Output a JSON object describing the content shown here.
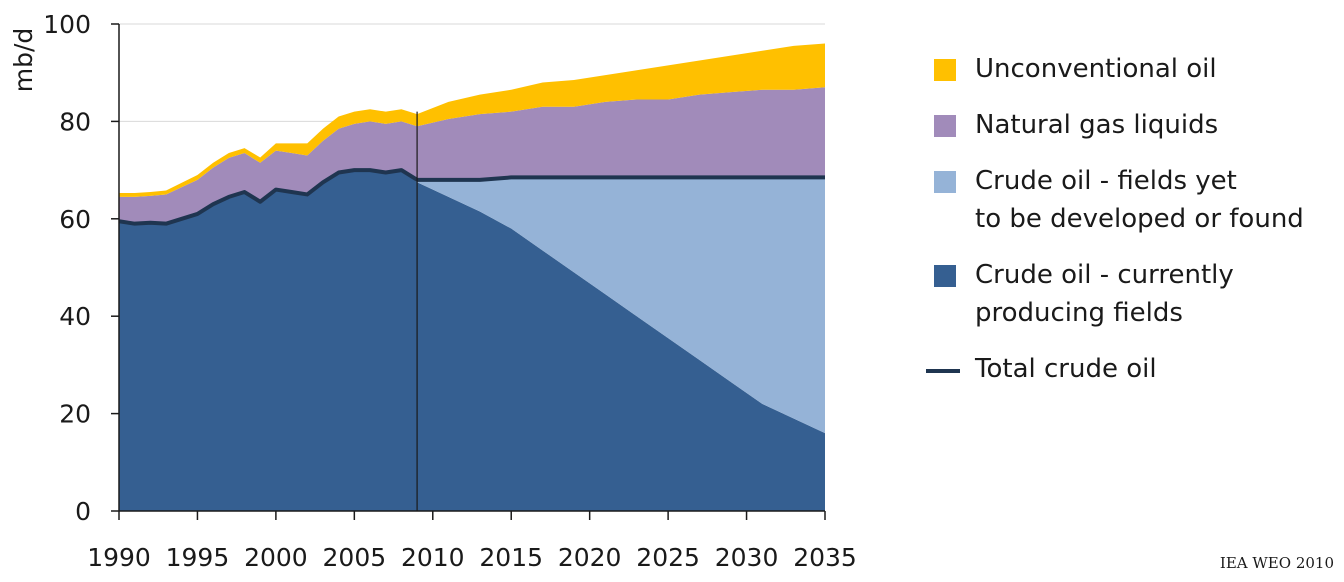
{
  "chart_data": {
    "type": "area",
    "ylabel": "mb/d",
    "ylim": [
      0,
      100
    ],
    "yticks": [
      0,
      20,
      40,
      60,
      80,
      100
    ],
    "xlim": [
      1990,
      2035
    ],
    "xticks": [
      1990,
      1995,
      2000,
      2005,
      2010,
      2015,
      2020,
      2025,
      2030,
      2035
    ],
    "divider_year": 2009,
    "grid": true,
    "x": [
      1990,
      1991,
      1992,
      1993,
      1994,
      1995,
      1996,
      1997,
      1998,
      1999,
      2000,
      2001,
      2002,
      2003,
      2004,
      2005,
      2006,
      2007,
      2008,
      2009,
      2011,
      2013,
      2015,
      2017,
      2019,
      2021,
      2023,
      2025,
      2027,
      2029,
      2031,
      2033,
      2035
    ],
    "series": [
      {
        "name": "Crude oil - currently producing fields",
        "color": "#355F91",
        "values": [
          59.5,
          59.0,
          59.2,
          59.0,
          60.0,
          61.0,
          63.0,
          64.5,
          65.5,
          63.5,
          66.0,
          65.5,
          65.0,
          67.5,
          69.5,
          70.0,
          70.0,
          69.5,
          70.0,
          67.5,
          64.5,
          61.5,
          58.0,
          53.5,
          49.0,
          44.5,
          40.0,
          35.5,
          31.0,
          26.5,
          22.0,
          19.0,
          16.0
        ]
      },
      {
        "name": "Crude oil - fields yet to be developed or found",
        "color": "#95B3D7",
        "values": [
          0,
          0,
          0,
          0,
          0,
          0,
          0,
          0,
          0,
          0,
          0,
          0,
          0,
          0,
          0,
          0,
          0,
          0,
          0,
          0.5,
          3.5,
          6.5,
          10.5,
          15.0,
          19.5,
          24.0,
          28.5,
          33.0,
          37.5,
          42.0,
          46.5,
          49.5,
          52.5
        ]
      },
      {
        "name": "Natural gas liquids",
        "color": "#A18BBA",
        "values": [
          5.0,
          5.5,
          5.5,
          6.0,
          6.5,
          7.0,
          7.5,
          8.0,
          8.0,
          8.0,
          8.0,
          8.0,
          8.0,
          8.5,
          9.0,
          9.5,
          10.0,
          10.0,
          10.0,
          11.0,
          12.5,
          13.5,
          13.5,
          14.5,
          14.5,
          15.5,
          16.0,
          16.0,
          17.0,
          17.5,
          18.0,
          18.0,
          18.5
        ]
      },
      {
        "name": "Unconventional oil",
        "color": "#FFC000",
        "values": [
          0.8,
          0.8,
          0.8,
          0.8,
          0.9,
          1.0,
          1.0,
          1.0,
          1.0,
          1.1,
          1.5,
          2.0,
          2.5,
          2.5,
          2.5,
          2.5,
          2.5,
          2.5,
          2.5,
          2.5,
          3.5,
          4.0,
          4.5,
          5.0,
          5.5,
          5.5,
          6.0,
          7.0,
          7.0,
          7.5,
          8.0,
          9.0,
          9.0
        ]
      }
    ],
    "total_line": {
      "name": "Total crude oil",
      "color": "#1F3550",
      "values": [
        59.5,
        59.0,
        59.2,
        59.0,
        60.0,
        61.0,
        63.0,
        64.5,
        65.5,
        63.5,
        66.0,
        65.5,
        65.0,
        67.5,
        69.5,
        70.0,
        70.0,
        69.5,
        70.0,
        68.0,
        68.0,
        68.0,
        68.5,
        68.5,
        68.5,
        68.5,
        68.5,
        68.5,
        68.5,
        68.5,
        68.5,
        68.5,
        68.5
      ]
    }
  },
  "legend": [
    {
      "label": "Unconventional oil",
      "color": "#FFC000",
      "kind": "area"
    },
    {
      "label": "Natural gas liquids",
      "color": "#A18BBA",
      "kind": "area"
    },
    {
      "label": "Crude oil - fields yet\nto be developed or found",
      "color": "#95B3D7",
      "kind": "area"
    },
    {
      "label": "Crude oil - currently\nproducing fields",
      "color": "#355F91",
      "kind": "area"
    },
    {
      "label": "Total crude oil",
      "color": "#1F3550",
      "kind": "line"
    }
  ],
  "source": "IEA WEO 2010"
}
